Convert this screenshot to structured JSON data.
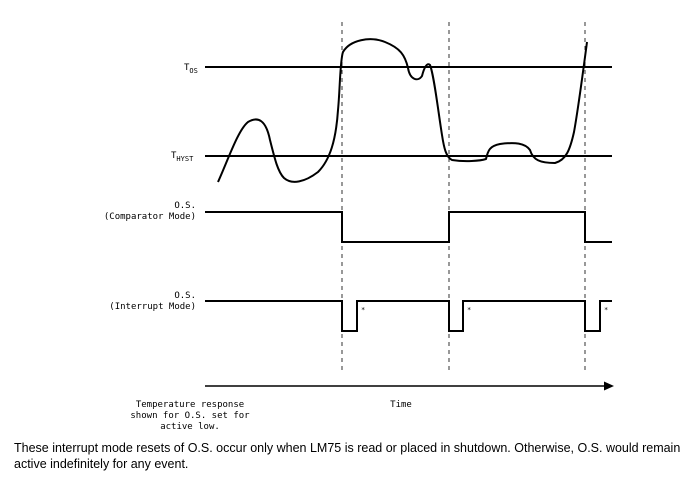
{
  "labels": {
    "tos_main": "T",
    "tos_sub": "OS",
    "thyst_main": "T",
    "thyst_sub": "HYST",
    "os_comparator_line1": "O.S.",
    "os_comparator_line2": "(Comparator Mode)",
    "os_interrupt_line1": "O.S.",
    "os_interrupt_line2": "(Interrupt Mode)",
    "time_axis": "Time",
    "note_line1": "Temperature response",
    "note_line2": "shown for O.S. set for",
    "note_line3": "active low.",
    "reset_marker": "*"
  },
  "caption": "These interrupt mode resets of O.S. occur only when LM75 is read or placed in shutdown. Otherwise, O.S. would remain active indefinitely for any event."
}
